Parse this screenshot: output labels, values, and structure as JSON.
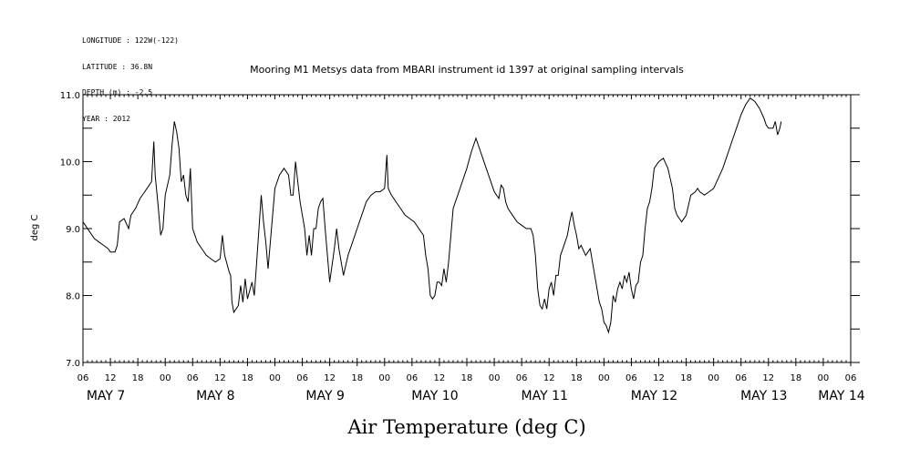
{
  "metadata": {
    "lines": [
      "LONGITUDE : 122W(-122)",
      "LATITUDE : 36.8N",
      "DEPTH (m) : -2.5",
      "YEAR : 2012"
    ]
  },
  "chart_data": {
    "type": "line",
    "title": "Mooring M1 Metsys data from MBARI instrument id 1397 at original sampling intervals",
    "xlabel": "Air Temperature (deg C)",
    "ylabel": "deg C",
    "x_unit": "hours since 2012-05-07 00:00",
    "xlim": [
      6,
      174
    ],
    "ylim": [
      7.0,
      11.0
    ],
    "y_ticks": [
      "7.0",
      "8.0",
      "9.0",
      "10.0",
      "11.0"
    ],
    "x_tick_labels": [
      "06",
      "12",
      "18",
      "00",
      "06",
      "12",
      "18",
      "00",
      "06",
      "12",
      "18",
      "00",
      "06",
      "12",
      "18",
      "00",
      "06",
      "12",
      "18",
      "00",
      "06",
      "12",
      "18",
      "00",
      "06",
      "12",
      "18",
      "00",
      "06"
    ],
    "day_labels": [
      "MAY  7",
      "MAY  8",
      "MAY  9",
      "MAY 10",
      "MAY 11",
      "MAY 12",
      "MAY 13",
      "MAY 14"
    ],
    "grid": false,
    "series": [
      {
        "color": "#000000",
        "points": [
          [
            6,
            9.1
          ],
          [
            6.5,
            9.05
          ],
          [
            7.5,
            8.95
          ],
          [
            8.5,
            8.85
          ],
          [
            9.5,
            8.8
          ],
          [
            10.5,
            8.75
          ],
          [
            11.5,
            8.7
          ],
          [
            12,
            8.65
          ],
          [
            13,
            8.65
          ],
          [
            13.5,
            8.75
          ],
          [
            14,
            9.1
          ],
          [
            15,
            9.15
          ],
          [
            16,
            9.0
          ],
          [
            16.5,
            9.2
          ],
          [
            17.5,
            9.3
          ],
          [
            18.5,
            9.45
          ],
          [
            19.5,
            9.55
          ],
          [
            20.5,
            9.65
          ],
          [
            21,
            9.7
          ],
          [
            21.5,
            10.3
          ],
          [
            21.8,
            9.8
          ],
          [
            22.5,
            9.3
          ],
          [
            23,
            8.9
          ],
          [
            23.5,
            9.0
          ],
          [
            24,
            9.5
          ],
          [
            25,
            9.8
          ],
          [
            25.5,
            10.25
          ],
          [
            26,
            10.6
          ],
          [
            26.5,
            10.45
          ],
          [
            27,
            10.2
          ],
          [
            27.5,
            9.7
          ],
          [
            28,
            9.8
          ],
          [
            28.5,
            9.5
          ],
          [
            29,
            9.4
          ],
          [
            29.5,
            9.9
          ],
          [
            30,
            9.0
          ],
          [
            31,
            8.8
          ],
          [
            32,
            8.7
          ],
          [
            33,
            8.6
          ],
          [
            34,
            8.55
          ],
          [
            35,
            8.5
          ],
          [
            36,
            8.55
          ],
          [
            36.5,
            8.9
          ],
          [
            37,
            8.6
          ],
          [
            38,
            8.35
          ],
          [
            38.3,
            8.3
          ],
          [
            38.6,
            7.9
          ],
          [
            39,
            7.75
          ],
          [
            40,
            7.85
          ],
          [
            40.5,
            8.15
          ],
          [
            41,
            7.9
          ],
          [
            41.5,
            8.25
          ],
          [
            42,
            7.95
          ],
          [
            43,
            8.2
          ],
          [
            43.5,
            8.0
          ],
          [
            44,
            8.5
          ],
          [
            45,
            9.5
          ],
          [
            45.5,
            9.1
          ],
          [
            46,
            8.8
          ],
          [
            46.5,
            8.4
          ],
          [
            47,
            8.8
          ],
          [
            47.5,
            9.2
          ],
          [
            48,
            9.6
          ],
          [
            49,
            9.8
          ],
          [
            50,
            9.9
          ],
          [
            51,
            9.8
          ],
          [
            51.5,
            9.5
          ],
          [
            52,
            9.5
          ],
          [
            52.5,
            10.0
          ],
          [
            53,
            9.7
          ],
          [
            53.5,
            9.4
          ],
          [
            54,
            9.2
          ],
          [
            54.5,
            9.0
          ],
          [
            55,
            8.6
          ],
          [
            55.5,
            8.9
          ],
          [
            56,
            8.6
          ],
          [
            56.5,
            9.0
          ],
          [
            57,
            9.0
          ],
          [
            57.5,
            9.3
          ],
          [
            58,
            9.4
          ],
          [
            58.5,
            9.45
          ],
          [
            59,
            9.0
          ],
          [
            59.5,
            8.6
          ],
          [
            60,
            8.2
          ],
          [
            61,
            8.7
          ],
          [
            61.5,
            9.0
          ],
          [
            62,
            8.7
          ],
          [
            62.5,
            8.5
          ],
          [
            63,
            8.3
          ],
          [
            64,
            8.6
          ],
          [
            65,
            8.8
          ],
          [
            66,
            9.0
          ],
          [
            67,
            9.2
          ],
          [
            68,
            9.4
          ],
          [
            69,
            9.5
          ],
          [
            70,
            9.55
          ],
          [
            71,
            9.55
          ],
          [
            72,
            9.6
          ],
          [
            72.5,
            10.1
          ],
          [
            72.8,
            9.6
          ],
          [
            73.5,
            9.5
          ],
          [
            74.5,
            9.4
          ],
          [
            75.5,
            9.3
          ],
          [
            76.5,
            9.2
          ],
          [
            77.5,
            9.15
          ],
          [
            78.5,
            9.1
          ],
          [
            79.5,
            9.0
          ],
          [
            80.5,
            8.9
          ],
          [
            81,
            8.6
          ],
          [
            81.5,
            8.4
          ],
          [
            82,
            8.0
          ],
          [
            82.5,
            7.95
          ],
          [
            83,
            8.0
          ],
          [
            83.5,
            8.2
          ],
          [
            84,
            8.2
          ],
          [
            84.5,
            8.15
          ],
          [
            85,
            8.4
          ],
          [
            85.5,
            8.2
          ],
          [
            86,
            8.5
          ],
          [
            86.5,
            8.9
          ],
          [
            87,
            9.3
          ],
          [
            88,
            9.5
          ],
          [
            89,
            9.7
          ],
          [
            90,
            9.9
          ],
          [
            91,
            10.15
          ],
          [
            92,
            10.35
          ],
          [
            93,
            10.15
          ],
          [
            94,
            9.95
          ],
          [
            95,
            9.75
          ],
          [
            96,
            9.55
          ],
          [
            97,
            9.45
          ],
          [
            97.5,
            9.65
          ],
          [
            98,
            9.6
          ],
          [
            98.5,
            9.4
          ],
          [
            99,
            9.3
          ],
          [
            100,
            9.2
          ],
          [
            101,
            9.1
          ],
          [
            102,
            9.05
          ],
          [
            103,
            9.0
          ],
          [
            104,
            9.0
          ],
          [
            104.5,
            8.9
          ],
          [
            105,
            8.6
          ],
          [
            105.5,
            8.1
          ],
          [
            106,
            7.85
          ],
          [
            106.5,
            7.8
          ],
          [
            107,
            7.95
          ],
          [
            107.5,
            7.8
          ],
          [
            108,
            8.1
          ],
          [
            108.5,
            8.2
          ],
          [
            109,
            8.0
          ],
          [
            109.5,
            8.3
          ],
          [
            110,
            8.3
          ],
          [
            110.5,
            8.6
          ],
          [
            111,
            8.7
          ],
          [
            111.5,
            8.8
          ],
          [
            112,
            8.9
          ],
          [
            112.5,
            9.1
          ],
          [
            113,
            9.25
          ],
          [
            113.5,
            9.05
          ],
          [
            114,
            8.9
          ],
          [
            114.5,
            8.7
          ],
          [
            115,
            8.75
          ],
          [
            116,
            8.6
          ],
          [
            117,
            8.7
          ],
          [
            117.5,
            8.5
          ],
          [
            118,
            8.3
          ],
          [
            118.5,
            8.1
          ],
          [
            119,
            7.9
          ],
          [
            119.5,
            7.8
          ],
          [
            120,
            7.6
          ],
          [
            120.5,
            7.55
          ],
          [
            121,
            7.45
          ],
          [
            121.5,
            7.6
          ],
          [
            122,
            8.0
          ],
          [
            122.5,
            7.9
          ],
          [
            123,
            8.1
          ],
          [
            123.5,
            8.2
          ],
          [
            124,
            8.1
          ],
          [
            124.5,
            8.3
          ],
          [
            125,
            8.2
          ],
          [
            125.5,
            8.35
          ],
          [
            126,
            8.1
          ],
          [
            126.5,
            7.95
          ],
          [
            127,
            8.15
          ],
          [
            127.5,
            8.2
          ],
          [
            128,
            8.5
          ],
          [
            128.5,
            8.6
          ],
          [
            129,
            9.0
          ],
          [
            129.5,
            9.3
          ],
          [
            130,
            9.4
          ],
          [
            130.5,
            9.6
          ],
          [
            131,
            9.9
          ],
          [
            132,
            10.0
          ],
          [
            133,
            10.05
          ],
          [
            134,
            9.9
          ],
          [
            135,
            9.6
          ],
          [
            135.5,
            9.3
          ],
          [
            136,
            9.2
          ],
          [
            136.5,
            9.15
          ],
          [
            137,
            9.1
          ],
          [
            138,
            9.2
          ],
          [
            139,
            9.5
          ],
          [
            140,
            9.55
          ],
          [
            140.5,
            9.6
          ],
          [
            141,
            9.55
          ],
          [
            142,
            9.5
          ],
          [
            143,
            9.55
          ],
          [
            144,
            9.6
          ],
          [
            145,
            9.75
          ],
          [
            146,
            9.9
          ],
          [
            147,
            10.1
          ],
          [
            148,
            10.3
          ],
          [
            149,
            10.5
          ],
          [
            150,
            10.7
          ],
          [
            151,
            10.85
          ],
          [
            152,
            10.95
          ],
          [
            153,
            10.9
          ],
          [
            154,
            10.8
          ],
          [
            155,
            10.65
          ],
          [
            155.5,
            10.55
          ],
          [
            156,
            10.5
          ],
          [
            157,
            10.5
          ],
          [
            157.5,
            10.6
          ],
          [
            158,
            10.4
          ],
          [
            158.5,
            10.5
          ],
          [
            158.8,
            10.6
          ]
        ]
      }
    ]
  }
}
